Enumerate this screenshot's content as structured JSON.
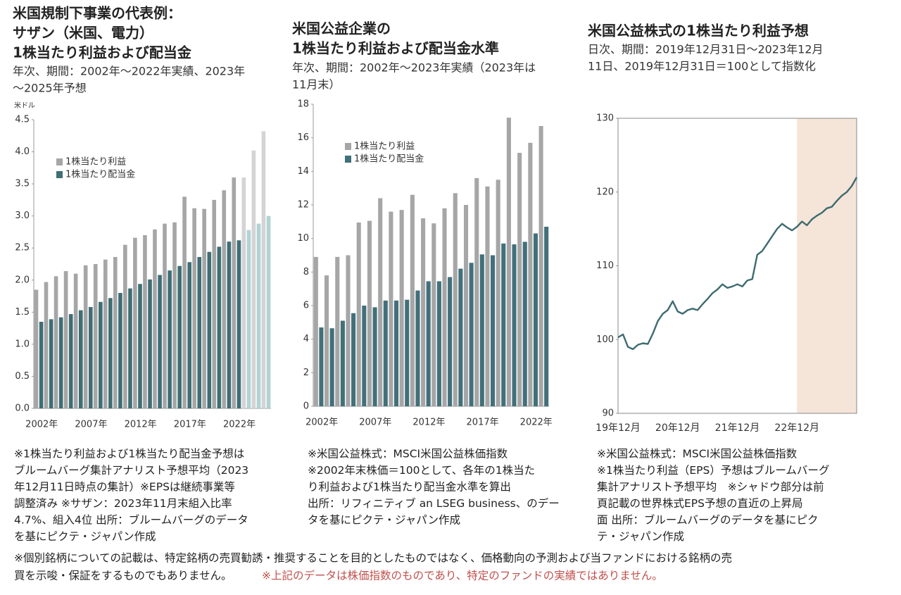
{
  "chart_data": [
    {
      "type": "bar",
      "title": [
        "米国規制下事業の代表例：",
        "サザン（米国、電力）",
        "1株当たり利益および配当金"
      ],
      "subtitle": [
        "年次、期間：2002年～2022年実績、2023年",
        "～2025年予想"
      ],
      "unit": "米ドル",
      "categories": [
        "2002年",
        null,
        null,
        null,
        null,
        "2007年",
        null,
        null,
        null,
        null,
        "2012年",
        null,
        null,
        null,
        null,
        "2017年",
        null,
        null,
        null,
        null,
        "2022年",
        null,
        null,
        null
      ],
      "series": [
        {
          "name": "1株当たり利益",
          "color": "#a6a6a6",
          "colors": [
            "#a6a6a6",
            "#a6a6a6",
            "#a6a6a6",
            "#a6a6a6",
            "#a6a6a6",
            "#a6a6a6",
            "#a6a6a6",
            "#a6a6a6",
            "#a6a6a6",
            "#a6a6a6",
            "#a6a6a6",
            "#a6a6a6",
            "#a6a6a6",
            "#a6a6a6",
            "#a6a6a6",
            "#a6a6a6",
            "#a6a6a6",
            "#a6a6a6",
            "#a6a6a6",
            "#a6a6a6",
            "#a6a6a6",
            "#d4d4d4",
            "#d4d4d4",
            "#d4d4d4"
          ],
          "values": [
            1.85,
            1.97,
            2.06,
            2.14,
            2.1,
            2.23,
            2.25,
            2.32,
            2.36,
            2.55,
            2.66,
            2.7,
            2.79,
            2.88,
            2.9,
            3.3,
            3.12,
            3.11,
            3.25,
            3.4,
            3.6,
            3.6,
            4.02,
            4.32
          ]
        },
        {
          "name": "1株当たり配当金",
          "color": "#3f6e74",
          "colors": [
            "#3f6e74",
            "#3f6e74",
            "#3f6e74",
            "#3f6e74",
            "#3f6e74",
            "#3f6e74",
            "#3f6e74",
            "#3f6e74",
            "#3f6e74",
            "#3f6e74",
            "#3f6e74",
            "#3f6e74",
            "#3f6e74",
            "#3f6e74",
            "#3f6e74",
            "#3f6e74",
            "#3f6e74",
            "#3f6e74",
            "#3f6e74",
            "#3f6e74",
            "#3f6e74",
            "#b2d3d5",
            "#b2d3d5",
            "#b2d3d5"
          ],
          "values": [
            1.35,
            1.39,
            1.42,
            1.47,
            1.53,
            1.58,
            1.66,
            1.72,
            1.8,
            1.87,
            1.94,
            2.01,
            2.08,
            2.15,
            2.22,
            2.28,
            2.36,
            2.44,
            2.52,
            2.6,
            2.62,
            2.78,
            2.88,
            3.0
          ]
        }
      ],
      "ylim": [
        0,
        4.5
      ],
      "yticks": [
        {
          "value": 0,
          "label": "0.0"
        },
        0.5,
        {
          "value": 1,
          "label": "1.0"
        },
        1.5,
        {
          "value": 2,
          "label": "2.0"
        },
        2.5,
        {
          "value": 3,
          "label": "3.0"
        },
        3.5,
        {
          "value": 4,
          "label": "4.0"
        },
        4.5
      ],
      "legend": "upper left",
      "notes": [
        "※1株当たり利益および1株当たり配当金予想は",
        "ブルームバーグ集計アナリスト予想平均（2023",
        "年12月11日時点の集計）※EPSは継続事業等",
        "調整済み ※サザン：2023年11月末組入比率",
        "4.7%、組入4位 出所：ブルームバーグのデータ",
        "を基にピクテ・ジャパン作成"
      ]
    },
    {
      "type": "bar",
      "title": [
        "米国公益企業の",
        "1株当たり利益および配当金水準"
      ],
      "subtitle": [
        "年次、期間：2002年～2023年実績（2023年は",
        "11月末）"
      ],
      "categories": [
        "2002年",
        null,
        null,
        null,
        null,
        "2007年",
        null,
        null,
        null,
        null,
        "2012年",
        null,
        null,
        null,
        null,
        "2017年",
        null,
        null,
        null,
        null,
        "2022年",
        null
      ],
      "series": [
        {
          "name": "1株当たり利益",
          "color": "#a6a6a6",
          "values": [
            8.9,
            7.8,
            8.9,
            9.0,
            10.95,
            11.05,
            12.4,
            11.6,
            11.7,
            12.6,
            11.2,
            10.9,
            11.8,
            12.7,
            12.0,
            13.6,
            13.1,
            13.5,
            17.2,
            15.1,
            15.7,
            16.7
          ]
        },
        {
          "name": "1株当たり配当金",
          "color": "#42707a",
          "values": [
            4.7,
            4.65,
            5.1,
            5.55,
            6.0,
            5.9,
            6.3,
            6.3,
            6.35,
            6.9,
            7.45,
            7.45,
            7.7,
            8.2,
            8.55,
            9.05,
            9.0,
            9.7,
            9.65,
            9.8,
            10.3,
            10.7
          ]
        }
      ],
      "ylim": [
        0,
        18
      ],
      "yticks": [
        0,
        2,
        4,
        6,
        8,
        10,
        12,
        14,
        16,
        18
      ],
      "legend": "upper left",
      "notes": [
        "※米国公益株式：MSCI米国公益株価指数",
        "※2002年末株価＝100として、各年の1株当た",
        "り利益および1株当たり配当金水準を算出",
        "出所：リフィニティブ an LSEG business、のデー",
        "タを基にピクテ・ジャパン作成"
      ]
    },
    {
      "type": "line",
      "title": [
        "米国公益株式の1株当たり利益予想"
      ],
      "subtitle": [
        "日次、期間：2019年12月31日～2023年12月",
        "11日、2019年12月31日＝100として指数化"
      ],
      "categories": [
        "19年12月",
        null,
        null,
        null,
        null,
        null,
        null,
        null,
        null,
        null,
        null,
        null,
        "20年12月",
        null,
        null,
        null,
        null,
        null,
        null,
        null,
        null,
        null,
        null,
        null,
        "21年12月",
        null,
        null,
        null,
        null,
        null,
        null,
        null,
        null,
        null,
        null,
        null,
        "22年12月",
        null,
        null,
        null,
        null,
        null,
        null,
        null,
        null,
        null,
        null,
        null,
        null
      ],
      "values": [
        100.3,
        100.7,
        99.0,
        98.7,
        99.3,
        99.5,
        99.4,
        100.8,
        102.5,
        103.5,
        104.0,
        105.2,
        103.8,
        103.5,
        104.0,
        104.2,
        104.0,
        104.8,
        105.5,
        106.3,
        106.8,
        107.5,
        107.0,
        107.2,
        107.5,
        107.2,
        108.0,
        108.2,
        111.5,
        112.0,
        113.0,
        114.0,
        115.0,
        115.7,
        115.2,
        114.8,
        115.3,
        116.0,
        115.5,
        116.3,
        116.8,
        117.2,
        117.8,
        118.0,
        118.8,
        119.5,
        120.0,
        120.8,
        122.0
      ],
      "color": "#3d6b70",
      "ylim": [
        90,
        130
      ],
      "yticks": [
        90,
        100,
        110,
        120,
        130
      ],
      "shade_start": "22年12月",
      "shade_color": "#f5e4d8",
      "notes": [
        "※米国公益株式：MSCI米国公益株価指数",
        "※1株当たり利益（EPS）予想はブルームバーグ",
        "集計アナリスト予想平均　※シャドウ部分は前",
        "頁記載の世界株式EPS予想の直近の上昇局",
        "面 出所：ブルームバーグのデータを基にピク",
        "テ・ジャパン作成"
      ]
    }
  ],
  "footer": {
    "lines": [
      "※個別銘柄についての記載は、特定銘柄の売買勧誘・推奨することを目的としたものではなく、価格動向の予測および当ファンドにおける銘柄の売",
      "買を示唆・保証をするものでもありません。"
    ],
    "red_note": "※上記のデータは株価指数のものであり、特定のファンドの実績ではありません。",
    "red_color": "#c0504d"
  }
}
